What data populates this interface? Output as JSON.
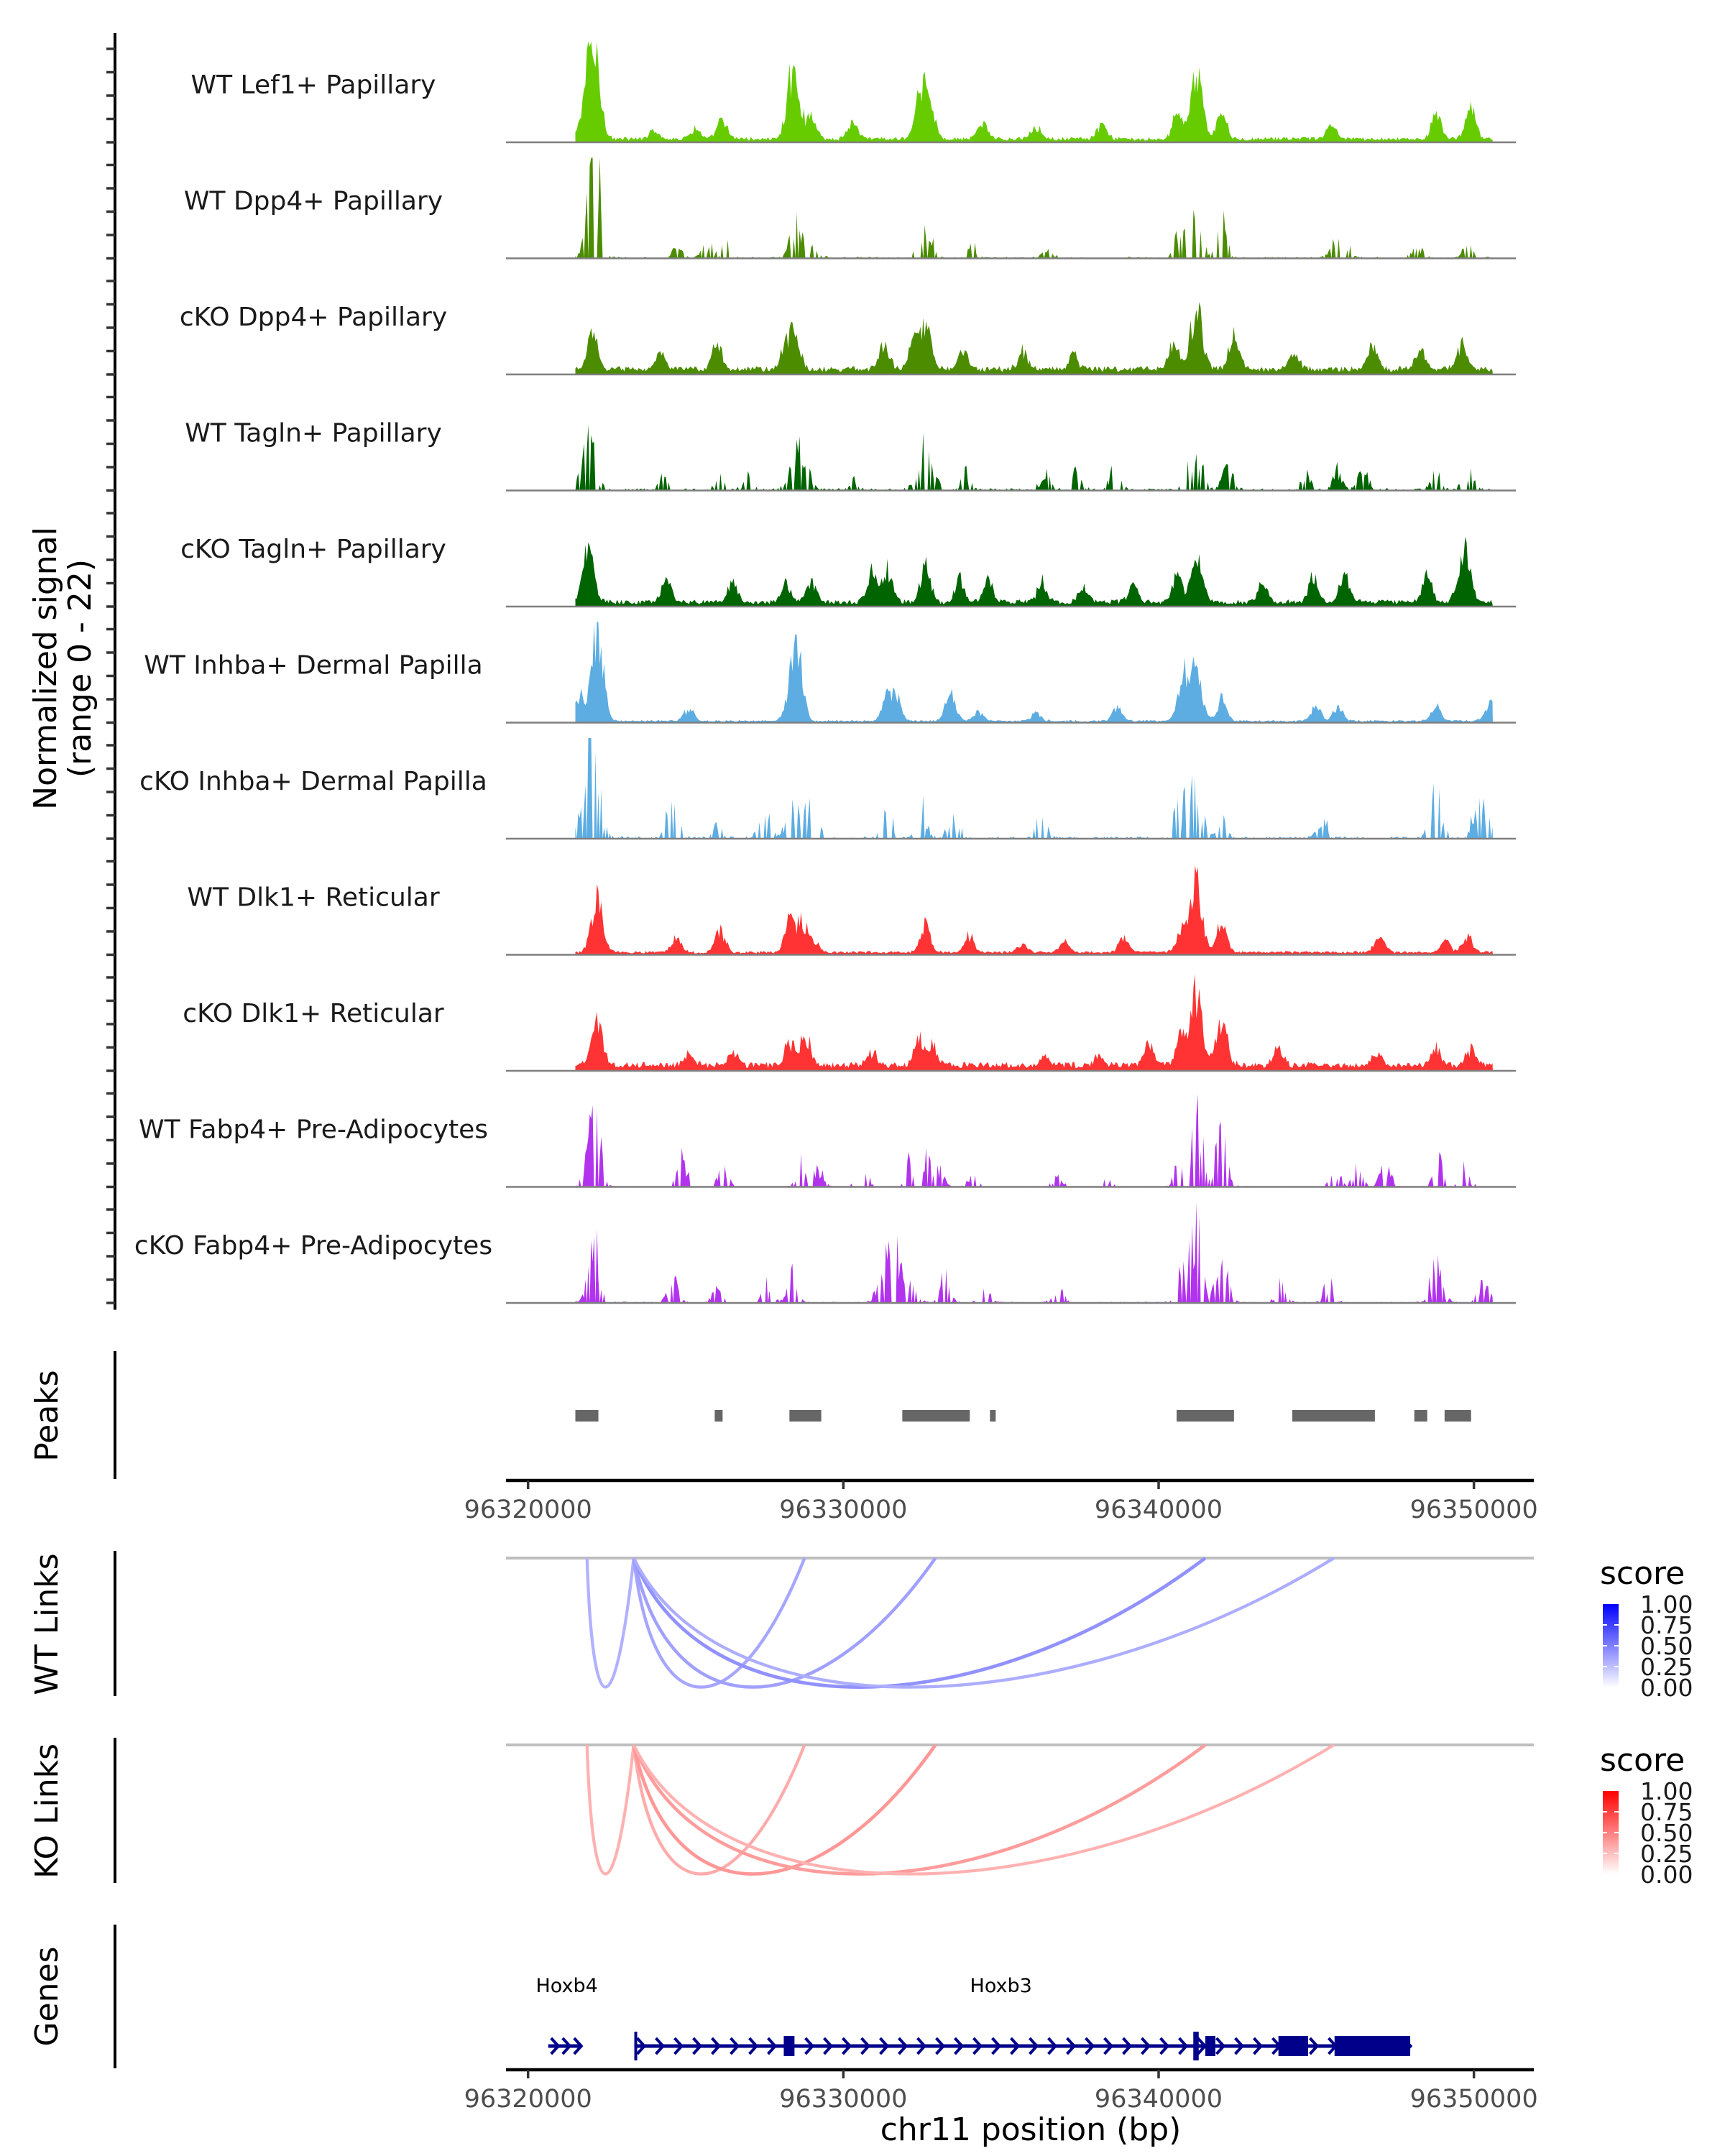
{
  "figure": {
    "y_axis_title_line1": "Normalized signal",
    "y_axis_title_line2": "(range 0 - 22)",
    "peaks_title": "Peaks",
    "wt_links_title": "WT Links",
    "ko_links_title": "KO Links",
    "genes_title": "Genes",
    "x_axis_title": "chr11 position (bp)"
  },
  "chart_data": {
    "type": "area",
    "title": "",
    "xlabel": "chr11 position (bp)",
    "ylabel": "Normalized signal (range 0 - 22)",
    "xlim": [
      96319300,
      96351900
    ],
    "ylim": [
      0,
      22
    ],
    "x_ticks": [
      96320000,
      96330000,
      96340000,
      96350000
    ],
    "x_tick_labels": [
      "96320000",
      "96330000",
      "96340000",
      "96350000"
    ],
    "signal_start": 96321500,
    "signal_end": 96350600,
    "tracks": [
      {
        "name": "WT Lef1+ Papillary",
        "color": "#66CC00",
        "style": "continuous",
        "summits": [
          [
            96321900,
            14
          ],
          [
            96322150,
            15.5
          ],
          [
            96324000,
            2.5
          ],
          [
            96325300,
            2.8
          ],
          [
            96326150,
            4.8
          ],
          [
            96328300,
            8.5
          ],
          [
            96328500,
            11.5
          ],
          [
            96329000,
            5.5
          ],
          [
            96330300,
            4.5
          ],
          [
            96332500,
            13.5
          ],
          [
            96332800,
            5
          ],
          [
            96334400,
            4.2
          ],
          [
            96336100,
            3.3
          ],
          [
            96338200,
            3.4
          ],
          [
            96340600,
            6.5
          ],
          [
            96341200,
            16.2
          ],
          [
            96342000,
            6.8
          ],
          [
            96345500,
            3.6
          ],
          [
            96348800,
            6.5
          ],
          [
            96349900,
            7.5
          ]
        ],
        "background": 0.9
      },
      {
        "name": "WT Dpp4+ Papillary",
        "color": "#4C8C00",
        "style": "sparse",
        "summits": [
          [
            96322000,
            13.5
          ],
          [
            96322180,
            18
          ],
          [
            96324700,
            2.8
          ],
          [
            96325700,
            3.6
          ],
          [
            96326300,
            4.2
          ],
          [
            96328450,
            6.5
          ],
          [
            96328600,
            7
          ],
          [
            96329100,
            3.5
          ],
          [
            96332500,
            8
          ],
          [
            96332800,
            5.5
          ],
          [
            96334100,
            2.8
          ],
          [
            96336500,
            1.8
          ],
          [
            96340700,
            7.8
          ],
          [
            96341150,
            14
          ],
          [
            96342000,
            9.5
          ],
          [
            96345600,
            4.8
          ],
          [
            96345900,
            5
          ],
          [
            96348200,
            3
          ],
          [
            96349800,
            3
          ]
        ],
        "background": 0.35
      },
      {
        "name": "cKO Dpp4+ Papillary",
        "color": "#4C8C00",
        "style": "continuous",
        "summits": [
          [
            96322050,
            9.5
          ],
          [
            96324200,
            4
          ],
          [
            96326000,
            6.5
          ],
          [
            96328200,
            7.5
          ],
          [
            96328500,
            8
          ],
          [
            96331300,
            6.4
          ],
          [
            96332200,
            6
          ],
          [
            96332600,
            11.2
          ],
          [
            96333800,
            4.8
          ],
          [
            96335700,
            4.5
          ],
          [
            96337300,
            3.8
          ],
          [
            96340500,
            7.5
          ],
          [
            96341200,
            15.5
          ],
          [
            96342400,
            9
          ],
          [
            96344300,
            4
          ],
          [
            96346800,
            6
          ],
          [
            96348300,
            4.6
          ],
          [
            96349600,
            6.4
          ]
        ],
        "background": 1.4
      },
      {
        "name": "WT Tagln+ Papillary",
        "color": "#006400",
        "style": "sparse",
        "summits": [
          [
            96321800,
            8
          ],
          [
            96322050,
            9.5
          ],
          [
            96324300,
            3
          ],
          [
            96326150,
            4.5
          ],
          [
            96327000,
            3.5
          ],
          [
            96328450,
            11
          ],
          [
            96328800,
            5
          ],
          [
            96330300,
            2.5
          ],
          [
            96332500,
            10.2
          ],
          [
            96332800,
            5.5
          ],
          [
            96333900,
            4
          ],
          [
            96336400,
            4
          ],
          [
            96337400,
            4.3
          ],
          [
            96338600,
            5
          ],
          [
            96340900,
            8
          ],
          [
            96341300,
            7
          ],
          [
            96342200,
            7
          ],
          [
            96344700,
            3.5
          ],
          [
            96345700,
            5
          ],
          [
            96346500,
            4.5
          ],
          [
            96348800,
            4.3
          ],
          [
            96349800,
            5
          ]
        ],
        "background": 0.5
      },
      {
        "name": "cKO Tagln+ Papillary",
        "color": "#006400",
        "style": "continuous",
        "summits": [
          [
            96321900,
            12.5
          ],
          [
            96324400,
            5.8
          ],
          [
            96326500,
            5.5
          ],
          [
            96328200,
            4.5
          ],
          [
            96329000,
            5.3
          ],
          [
            96330900,
            7.5
          ],
          [
            96331400,
            8.2
          ],
          [
            96332600,
            9.2
          ],
          [
            96333700,
            6.2
          ],
          [
            96334600,
            5.5
          ],
          [
            96336300,
            5.3
          ],
          [
            96337600,
            3.5
          ],
          [
            96339200,
            4.5
          ],
          [
            96340600,
            6.5
          ],
          [
            96341200,
            11.5
          ],
          [
            96343300,
            4.3
          ],
          [
            96344900,
            6.5
          ],
          [
            96345900,
            6.5
          ],
          [
            96348500,
            7.2
          ],
          [
            96349700,
            13.2
          ]
        ],
        "background": 1.2
      },
      {
        "name": "WT Inhba+ Dermal Papilla",
        "color": "#5DADE2",
        "style": "continuous",
        "summits": [
          [
            96321650,
            6
          ],
          [
            96322200,
            22
          ],
          [
            96325100,
            3
          ],
          [
            96328400,
            11.2
          ],
          [
            96328600,
            10
          ],
          [
            96331400,
            6.6
          ],
          [
            96331700,
            5.3
          ],
          [
            96333400,
            7.5
          ],
          [
            96334300,
            2.3
          ],
          [
            96336100,
            2
          ],
          [
            96338700,
            3.5
          ],
          [
            96340800,
            11.2
          ],
          [
            96341200,
            11.2
          ],
          [
            96342000,
            5.5
          ],
          [
            96345000,
            3.7
          ],
          [
            96345700,
            3.5
          ],
          [
            96348800,
            3.8
          ],
          [
            96350500,
            4.4
          ]
        ],
        "background": 0.45
      },
      {
        "name": "cKO Inhba+ Dermal Papilla",
        "color": "#5DADE2",
        "style": "sparse",
        "summits": [
          [
            96321900,
            22
          ],
          [
            96322200,
            11.5
          ],
          [
            96324600,
            12.5
          ],
          [
            96326000,
            4
          ],
          [
            96327500,
            7.5
          ],
          [
            96328400,
            11.5
          ],
          [
            96329000,
            10.5
          ],
          [
            96331400,
            9
          ],
          [
            96332500,
            7.5
          ],
          [
            96333500,
            7.5
          ],
          [
            96336300,
            7
          ],
          [
            96340700,
            11.5
          ],
          [
            96341200,
            13
          ],
          [
            96342000,
            5
          ],
          [
            96345200,
            5
          ],
          [
            96348800,
            11
          ],
          [
            96350100,
            8.5
          ],
          [
            96350500,
            7.5
          ]
        ],
        "background": 0.5
      },
      {
        "name": "WT Dlk1+ Reticular",
        "color": "#FF3333",
        "style": "continuous",
        "summits": [
          [
            96322200,
            13.5
          ],
          [
            96324700,
            4
          ],
          [
            96326100,
            5.5
          ],
          [
            96328300,
            9
          ],
          [
            96328700,
            7.6
          ],
          [
            96329100,
            2.5
          ],
          [
            96332600,
            8
          ],
          [
            96334000,
            4.2
          ],
          [
            96335700,
            2
          ],
          [
            96337000,
            3
          ],
          [
            96338900,
            3.6
          ],
          [
            96340700,
            6
          ],
          [
            96341200,
            18.8
          ],
          [
            96342000,
            8.3
          ],
          [
            96347000,
            5
          ],
          [
            96349100,
            3
          ],
          [
            96349800,
            4
          ]
        ],
        "background": 0.65
      },
      {
        "name": "cKO Dlk1+ Reticular",
        "color": "#FF3333",
        "style": "continuous",
        "summits": [
          [
            96322200,
            10.5
          ],
          [
            96325100,
            3.3
          ],
          [
            96326500,
            3.5
          ],
          [
            96328300,
            6
          ],
          [
            96328800,
            7.5
          ],
          [
            96330900,
            3.5
          ],
          [
            96332400,
            6.8
          ],
          [
            96332800,
            5.3
          ],
          [
            96336400,
            2.3
          ],
          [
            96338100,
            2
          ],
          [
            96339700,
            5.5
          ],
          [
            96340700,
            7.5
          ],
          [
            96341200,
            18
          ],
          [
            96342000,
            10.8
          ],
          [
            96343800,
            3.8
          ],
          [
            96346900,
            3.5
          ],
          [
            96348800,
            5
          ],
          [
            96349900,
            4
          ]
        ],
        "background": 1.5
      },
      {
        "name": "WT Fabp4+ Pre-Adipocytes",
        "color": "#B233EE",
        "style": "sparse",
        "summits": [
          [
            96321900,
            6
          ],
          [
            96322150,
            13.5
          ],
          [
            96324900,
            7.2
          ],
          [
            96326200,
            7
          ],
          [
            96328700,
            6
          ],
          [
            96329200,
            4.5
          ],
          [
            96330600,
            6.5
          ],
          [
            96332100,
            6
          ],
          [
            96332600,
            7.4
          ],
          [
            96333000,
            5
          ],
          [
            96334100,
            2.5
          ],
          [
            96336800,
            2.2
          ],
          [
            96338300,
            2.2
          ],
          [
            96340700,
            9.5
          ],
          [
            96341200,
            19
          ],
          [
            96342000,
            14.7
          ],
          [
            96345600,
            4.8
          ],
          [
            96346300,
            5
          ],
          [
            96347200,
            6.3
          ],
          [
            96348900,
            6.2
          ],
          [
            96349700,
            5
          ]
        ],
        "background": 0.2
      },
      {
        "name": "cKO Fabp4+ Pre-Adipocytes",
        "color": "#B233EE",
        "style": "sparse",
        "summits": [
          [
            96322100,
            15.2
          ],
          [
            96324600,
            5.5
          ],
          [
            96326000,
            3
          ],
          [
            96327600,
            5
          ],
          [
            96328400,
            7
          ],
          [
            96331200,
            8
          ],
          [
            96331600,
            17
          ],
          [
            96332200,
            6
          ],
          [
            96333200,
            7.5
          ],
          [
            96334500,
            3
          ],
          [
            96336800,
            4
          ],
          [
            96340700,
            8
          ],
          [
            96341200,
            20.5
          ],
          [
            96342000,
            10.5
          ],
          [
            96343900,
            4.7
          ],
          [
            96345400,
            5.5
          ],
          [
            96348800,
            10.5
          ],
          [
            96350300,
            7
          ]
        ],
        "background": 0.3
      }
    ],
    "peaks": {
      "color": "#666666",
      "regions": [
        [
          96321500,
          96322230
        ],
        [
          96325920,
          96326170
        ],
        [
          96328290,
          96329300
        ],
        [
          96331870,
          96334010
        ],
        [
          96334650,
          96334830
        ],
        [
          96340570,
          96342390
        ],
        [
          96344240,
          96346860
        ],
        [
          96348110,
          96348520
        ],
        [
          96349070,
          96349910
        ]
      ]
    },
    "wt_links": {
      "legend_title": "score",
      "color_low": "#FFFFFF",
      "color_high": "#0000FF",
      "legend_ticks": [
        "0.00",
        "0.25",
        "0.50",
        "0.75",
        "1.00"
      ],
      "links": [
        {
          "start": 96321870,
          "end": 96323350,
          "score": 0.3
        },
        {
          "start": 96323350,
          "end": 96328770,
          "score": 0.35
        },
        {
          "start": 96323350,
          "end": 96332920,
          "score": 0.38
        },
        {
          "start": 96323350,
          "end": 96341480,
          "score": 0.45
        },
        {
          "start": 96323350,
          "end": 96345560,
          "score": 0.32
        }
      ]
    },
    "ko_links": {
      "legend_title": "score",
      "color_low": "#FFFFFF",
      "color_high": "#FF0000",
      "legend_ticks": [
        "0.00",
        "0.25",
        "0.50",
        "0.75",
        "1.00"
      ],
      "links": [
        {
          "start": 96321870,
          "end": 96323350,
          "score": 0.3
        },
        {
          "start": 96323350,
          "end": 96328770,
          "score": 0.33
        },
        {
          "start": 96323350,
          "end": 96332920,
          "score": 0.42
        },
        {
          "start": 96323350,
          "end": 96341480,
          "score": 0.4
        },
        {
          "start": 96323350,
          "end": 96345560,
          "score": 0.3
        }
      ]
    },
    "genes": {
      "color": "#00008B",
      "items": [
        {
          "name": "Hoxb4",
          "label_pos": 96321230,
          "start": 96320640,
          "end": 96321710,
          "strand": "+",
          "exons": []
        },
        {
          "name": "Hoxb3",
          "label_pos": 96335000,
          "start": 96323370,
          "end": 96347980,
          "strand": "+",
          "exons": [
            [
              96323370,
              96323420
            ],
            [
              96328110,
              96328450
            ],
            [
              96341100,
              96341130
            ],
            [
              96341180,
              96341210
            ],
            [
              96341480,
              96341800
            ],
            [
              96343800,
              96344740
            ],
            [
              96345580,
              96347980
            ]
          ]
        }
      ]
    }
  }
}
